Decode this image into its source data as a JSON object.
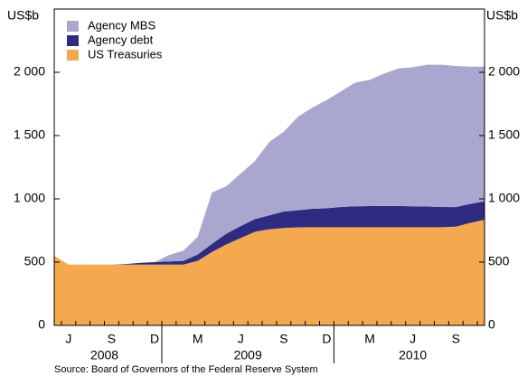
{
  "chart_data": {
    "type": "stacked-area",
    "y_unit_left": "US$b",
    "y_unit_right": "US$b",
    "categories": [
      null,
      "J",
      null,
      null,
      "S",
      null,
      null,
      "D",
      null,
      null,
      "M",
      null,
      null,
      "J",
      null,
      null,
      "S",
      null,
      null,
      "D",
      null,
      null,
      "M",
      null,
      null,
      "J",
      null,
      null,
      "S",
      null,
      null
    ],
    "years": [
      "2008",
      "2009",
      "2010"
    ],
    "series": [
      {
        "name": "Agency MBS",
        "color": "#a9a7d0",
        "values": [
          0,
          0,
          0,
          0,
          0,
          0,
          0,
          0,
          50,
          80,
          140,
          405,
          375,
          415,
          460,
          580,
          630,
          740,
          800,
          855,
          914,
          979,
          997,
          1046,
          1086,
          1099,
          1121,
          1124,
          1115,
          1085,
          1065
        ]
      },
      {
        "name": "Agency debt",
        "color": "#2e2b82",
        "values": [
          0,
          0,
          0,
          0,
          0,
          5,
          15,
          20,
          25,
          30,
          50,
          65,
          85,
          95,
          100,
          110,
          130,
          135,
          145,
          150,
          160,
          165,
          167,
          168,
          168,
          165,
          163,
          160,
          155,
          150,
          145
        ]
      },
      {
        "name": "US Treasuries",
        "color": "#f5a94e",
        "values": [
          550,
          480,
          480,
          480,
          480,
          480,
          480,
          480,
          480,
          480,
          510,
          580,
          640,
          690,
          740,
          760,
          770,
          775,
          776,
          776,
          776,
          776,
          776,
          776,
          776,
          776,
          776,
          776,
          780,
          810,
          835
        ]
      }
    ],
    "ylim": [
      0,
      2500
    ],
    "yticks": [
      0,
      500,
      {
        "value": 1000,
        "label": "1 000"
      },
      {
        "value": 1500,
        "label": "1 500"
      },
      {
        "value": 2000,
        "label": "2 000"
      }
    ],
    "legend": "upper left",
    "source": "Source: Board of Governors of the Federal Reserve System"
  }
}
